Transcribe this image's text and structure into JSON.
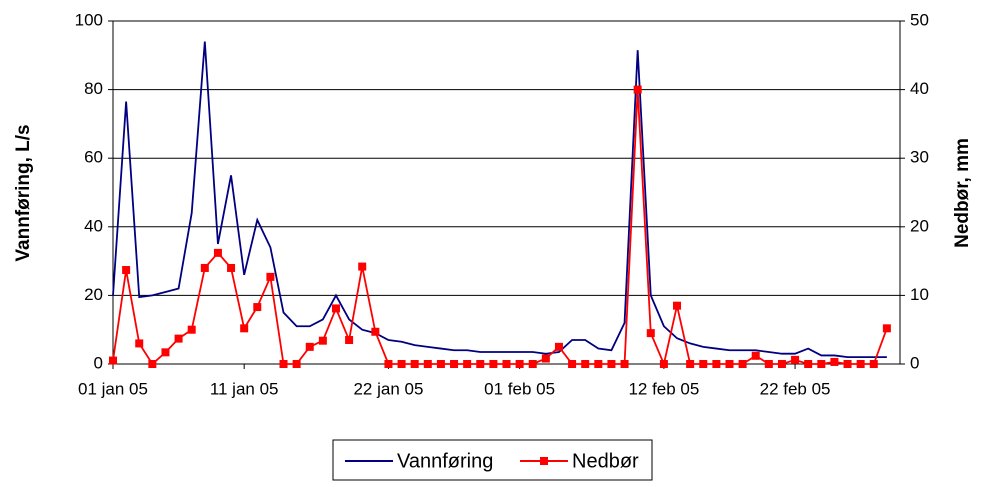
{
  "chart_data": {
    "type": "line",
    "categories": [
      "01 jan 05",
      null,
      null,
      null,
      null,
      null,
      null,
      null,
      null,
      null,
      "11 jan 05",
      null,
      null,
      null,
      null,
      null,
      null,
      null,
      null,
      null,
      null,
      "22 jan 05",
      null,
      null,
      null,
      null,
      null,
      null,
      null,
      null,
      null,
      "01 feb 05",
      null,
      null,
      null,
      null,
      null,
      null,
      null,
      null,
      null,
      null,
      "12 feb 05",
      null,
      null,
      null,
      null,
      null,
      null,
      null,
      null,
      null,
      "22 feb 05",
      null,
      null,
      null,
      null,
      null,
      null,
      null
    ],
    "series": [
      {
        "name": "Vannføring",
        "color": "#000080",
        "axis": "y",
        "values": [
          20,
          76.5,
          19.5,
          20,
          21,
          22,
          44,
          94,
          35,
          55,
          26,
          42,
          34,
          15,
          11,
          11,
          13,
          20,
          13,
          10,
          9,
          7,
          6.5,
          5.5,
          5,
          4.5,
          4,
          4,
          3.5,
          3.5,
          3.5,
          3.5,
          3.5,
          3,
          3.5,
          7,
          7,
          4.5,
          4,
          12,
          91.5,
          20,
          11,
          7.5,
          6,
          5,
          4.5,
          4,
          4,
          4,
          3.5,
          3,
          3,
          4.5,
          2.5,
          2.5,
          2,
          2,
          2,
          2
        ]
      },
      {
        "name": "Nedbør",
        "color": "#ff0000",
        "axis": "y2",
        "values": [
          0.5,
          13.7,
          3,
          0,
          1.7,
          3.7,
          5,
          14,
          16.2,
          14,
          5.2,
          8.3,
          12.7,
          0,
          0,
          2.5,
          3.4,
          8.1,
          3.5,
          14.2,
          4.7,
          0,
          0,
          0,
          0,
          0,
          0,
          0,
          0,
          0,
          0,
          0,
          0,
          0.8,
          2.5,
          0,
          0,
          0,
          0,
          0,
          40,
          4.5,
          0,
          8.5,
          0,
          0,
          0,
          0,
          0,
          1.2,
          0,
          0,
          0.6,
          0,
          0,
          0.3,
          0,
          0,
          0,
          5.2
        ]
      }
    ],
    "y_label": "Vannføring, L/s",
    "y2_label": "Nedbør, mm",
    "ylim": [
      0,
      100
    ],
    "yticks": [
      0,
      20,
      40,
      60,
      80,
      100
    ],
    "y2lim": [
      0,
      50
    ],
    "y2ticks": [
      0,
      10,
      20,
      30,
      40,
      50
    ],
    "grid": true,
    "legend": "bottom"
  }
}
